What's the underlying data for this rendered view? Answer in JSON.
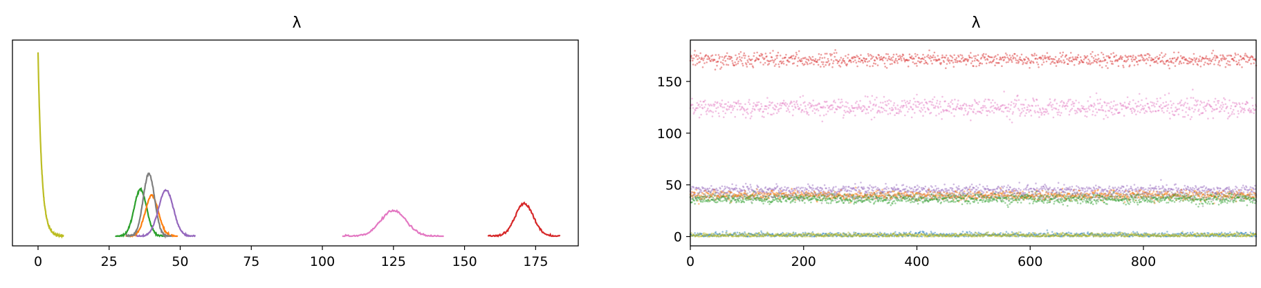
{
  "figure": {
    "panels": [
      {
        "title": "λ"
      },
      {
        "title": "λ"
      }
    ]
  },
  "chart_data": [
    {
      "type": "line",
      "title": "λ",
      "xlabel": "",
      "ylabel": "",
      "xlim": [
        -9,
        190
      ],
      "xticks": [
        0,
        25,
        50,
        75,
        100,
        125,
        150,
        175
      ],
      "yticks": [],
      "grid": false,
      "legend": "none",
      "series": [
        {
          "color": "#bcbd22",
          "kind": "exponential",
          "mode": 0,
          "scale": 1.3,
          "peak_height": 180
        },
        {
          "color": "#2ca02c",
          "kind": "gaussian",
          "mean": 36,
          "sd": 2.2,
          "peak_height": 46
        },
        {
          "color": "#ff7f0e",
          "kind": "gaussian",
          "mean": 40,
          "sd": 2.3,
          "peak_height": 40
        },
        {
          "color": "#7f7f7f",
          "kind": "gaussian",
          "mean": 39,
          "sd": 2.0,
          "peak_height": 61
        },
        {
          "color": "#9467bd",
          "kind": "gaussian",
          "mean": 45,
          "sd": 2.6,
          "peak_height": 45
        },
        {
          "color": "#e377c2",
          "kind": "gaussian",
          "mean": 125,
          "sd": 4.5,
          "peak_height": 25
        },
        {
          "color": "#d62728",
          "kind": "gaussian",
          "mean": 171,
          "sd": 3.2,
          "peak_height": 32
        }
      ]
    },
    {
      "type": "scatter",
      "title": "λ",
      "xlabel": "",
      "ylabel": "",
      "xlim": [
        0,
        999
      ],
      "ylim": [
        -9,
        190
      ],
      "xticks": [
        0,
        200,
        400,
        600,
        800
      ],
      "yticks": [
        0,
        50,
        100,
        150
      ],
      "grid": false,
      "legend": "none",
      "series": [
        {
          "color": "#d62728",
          "center": 171,
          "spread": 3.2
        },
        {
          "color": "#e377c2",
          "center": 125,
          "spread": 4.5
        },
        {
          "color": "#9467bd",
          "center": 45,
          "spread": 2.6
        },
        {
          "color": "#7f7f7f",
          "center": 39,
          "spread": 2.0
        },
        {
          "color": "#ff7f0e",
          "center": 40,
          "spread": 2.3
        },
        {
          "color": "#2ca02c",
          "center": 36,
          "spread": 2.2
        },
        {
          "color": "#1f77b4",
          "center": 1.5,
          "spread": 1.3
        },
        {
          "color": "#bcbd22",
          "center": 1.2,
          "spread": 1.1
        }
      ]
    }
  ]
}
